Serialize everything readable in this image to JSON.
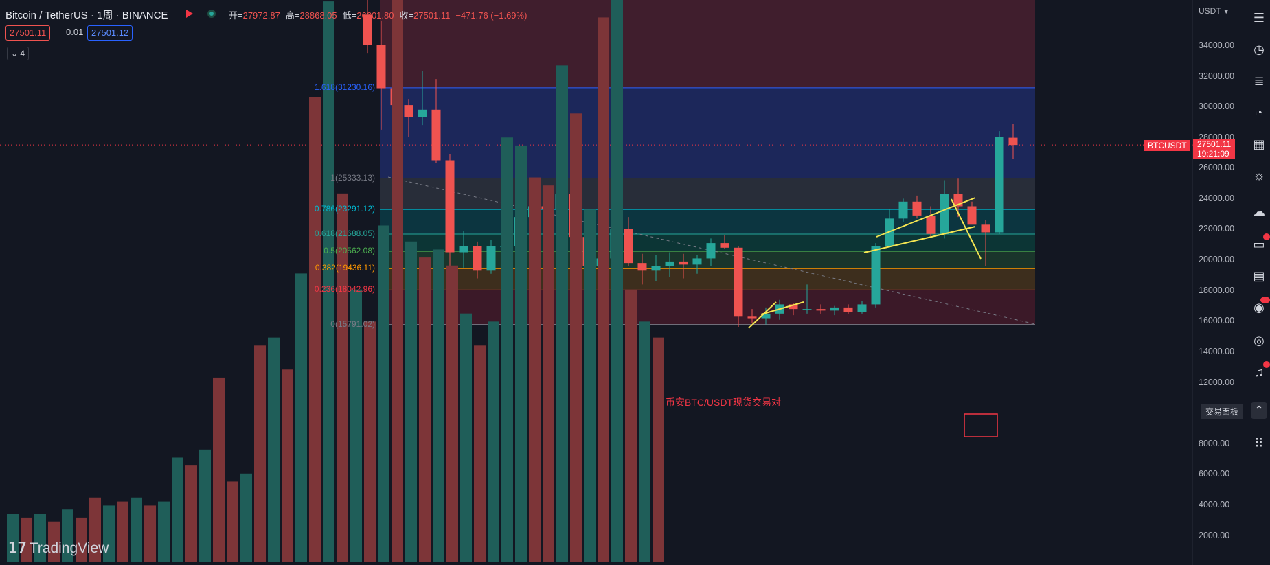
{
  "header": {
    "symbol": "Bitcoin / TetherUS · 1周 · BINANCE",
    "ohlc": [
      {
        "k": "开=",
        "v": "27972.87"
      },
      {
        "k": "高=",
        "v": "28868.05"
      },
      {
        "k": "低=",
        "v": "26601.80"
      },
      {
        "k": "收=",
        "v": "27501.11"
      },
      {
        "k": "",
        "v": "−471.76 (−1.69%)"
      }
    ],
    "bid": "27501.11",
    "spread": "0.01",
    "ask": "27501.12",
    "indicator_count": "4"
  },
  "axis": {
    "currency": "USDT",
    "labels": [
      "34000.00",
      "32000.00",
      "30000.00",
      "28000.00",
      "26000.00",
      "24000.00",
      "22000.00",
      "20000.00",
      "18000.00",
      "16000.00",
      "14000.00",
      "12000.00",
      "8000.00",
      "6000.00",
      "4000.00",
      "2000.00"
    ]
  },
  "price_tag": {
    "symbol": "BTCUSDT",
    "price": "27501.11",
    "countdown": "19:21:09"
  },
  "fib_levels": [
    {
      "label": "1.618(31230.16)",
      "price": 31230.16,
      "color": "#2962ff"
    },
    {
      "label": "1(25333.13)",
      "price": 25333.13,
      "color": "#787b86"
    },
    {
      "label": "0.786(23291.12)",
      "price": 23291.12,
      "color": "#00bcd4"
    },
    {
      "label": "0.618(21688.05)",
      "price": 21688.05,
      "color": "#26a69a"
    },
    {
      "label": "0.5(20562.08)",
      "price": 20562.08,
      "color": "#4caf50"
    },
    {
      "label": "0.382(19436.11)",
      "price": 19436.11,
      "color": "#ff9800"
    },
    {
      "label": "0.236(18042.96)",
      "price": 18042.96,
      "color": "#f23645"
    },
    {
      "label": "0(15791.02)",
      "price": 15791.02,
      "color": "#787b86"
    }
  ],
  "annotation": "币安BTC/USDT现货交易对",
  "tooltip": "交易面板",
  "watermark": "TradingView",
  "colors": {
    "up": "#26a69a",
    "down": "#ef5350",
    "bg": "#131722"
  },
  "chart_data": {
    "type": "candlestick",
    "title": "Bitcoin / TetherUS · 1周 · BINANCE",
    "ylim": [
      10500,
      35500
    ],
    "volume_ylim": [
      0,
      10000
    ],
    "candles": [
      {
        "o": 36000,
        "h": 38500,
        "l": 33500,
        "c": 34000
      },
      {
        "o": 34000,
        "h": 35600,
        "l": 28500,
        "c": 31200
      },
      {
        "o": 31200,
        "h": 31500,
        "l": 28200,
        "c": 30100
      },
      {
        "o": 30100,
        "h": 30500,
        "l": 28000,
        "c": 29300
      },
      {
        "o": 29300,
        "h": 32300,
        "l": 28800,
        "c": 29800
      },
      {
        "o": 29800,
        "h": 31800,
        "l": 26300,
        "c": 26500
      },
      {
        "o": 26500,
        "h": 26900,
        "l": 17600,
        "c": 20500
      },
      {
        "o": 20500,
        "h": 21900,
        "l": 19500,
        "c": 20900
      },
      {
        "o": 20900,
        "h": 21200,
        "l": 18800,
        "c": 19300
      },
      {
        "o": 19300,
        "h": 21300,
        "l": 19100,
        "c": 20900
      },
      {
        "o": 20900,
        "h": 22500,
        "l": 18900,
        "c": 20900
      },
      {
        "o": 20900,
        "h": 24300,
        "l": 20400,
        "c": 22800
      },
      {
        "o": 22800,
        "h": 24400,
        "l": 21300,
        "c": 23500
      },
      {
        "o": 23500,
        "h": 23800,
        "l": 22500,
        "c": 23300
      },
      {
        "o": 23300,
        "h": 24700,
        "l": 22600,
        "c": 24300
      },
      {
        "o": 24300,
        "h": 25200,
        "l": 21300,
        "c": 21500
      },
      {
        "o": 21500,
        "h": 22400,
        "l": 19500,
        "c": 19600
      },
      {
        "o": 19600,
        "h": 20500,
        "l": 19400,
        "c": 20100
      },
      {
        "o": 20100,
        "h": 22600,
        "l": 18700,
        "c": 22000
      },
      {
        "o": 22000,
        "h": 22800,
        "l": 19600,
        "c": 19800
      },
      {
        "o": 19800,
        "h": 20400,
        "l": 18400,
        "c": 19300
      },
      {
        "o": 19300,
        "h": 20300,
        "l": 18600,
        "c": 19600
      },
      {
        "o": 19600,
        "h": 20500,
        "l": 18900,
        "c": 19900
      },
      {
        "o": 19900,
        "h": 20400,
        "l": 18800,
        "c": 19700
      },
      {
        "o": 19700,
        "h": 20300,
        "l": 19100,
        "c": 20100
      },
      {
        "o": 20100,
        "h": 21400,
        "l": 19600,
        "c": 21100
      },
      {
        "o": 21100,
        "h": 21600,
        "l": 20700,
        "c": 20800
      },
      {
        "o": 20800,
        "h": 20900,
        "l": 15600,
        "c": 16300
      },
      {
        "o": 16300,
        "h": 16800,
        "l": 15900,
        "c": 16200
      },
      {
        "o": 16200,
        "h": 16900,
        "l": 15800,
        "c": 16500
      },
      {
        "o": 16500,
        "h": 17400,
        "l": 16100,
        "c": 17100
      },
      {
        "o": 17100,
        "h": 17200,
        "l": 16400,
        "c": 16800
      },
      {
        "o": 16800,
        "h": 18400,
        "l": 16500,
        "c": 16800
      },
      {
        "o": 16800,
        "h": 17100,
        "l": 16500,
        "c": 16700
      },
      {
        "o": 16700,
        "h": 17000,
        "l": 16400,
        "c": 16900
      },
      {
        "o": 16900,
        "h": 17100,
        "l": 16500,
        "c": 16600
      },
      {
        "o": 16600,
        "h": 17300,
        "l": 16500,
        "c": 17100
      },
      {
        "o": 17100,
        "h": 21100,
        "l": 16900,
        "c": 20900
      },
      {
        "o": 20900,
        "h": 23300,
        "l": 20800,
        "c": 22700
      },
      {
        "o": 22700,
        "h": 24000,
        "l": 22500,
        "c": 23800
      },
      {
        "o": 23800,
        "h": 24200,
        "l": 22700,
        "c": 22900
      },
      {
        "o": 22900,
        "h": 23500,
        "l": 21500,
        "c": 21700
      },
      {
        "o": 21700,
        "h": 25200,
        "l": 21400,
        "c": 24300
      },
      {
        "o": 24300,
        "h": 25300,
        "l": 22800,
        "c": 23500
      },
      {
        "o": 23500,
        "h": 23800,
        "l": 22400,
        "c": 22300
      },
      {
        "o": 22300,
        "h": 22600,
        "l": 19600,
        "c": 21800
      },
      {
        "o": 21800,
        "h": 28400,
        "l": 21700,
        "c": 28000
      },
      {
        "o": 27972.87,
        "h": 28868.05,
        "l": 26601.8,
        "c": 27501.11
      }
    ],
    "volume": [
      {
        "v": 600,
        "up": true
      },
      {
        "v": 550,
        "up": false
      },
      {
        "v": 600,
        "up": true
      },
      {
        "v": 500,
        "up": false
      },
      {
        "v": 650,
        "up": true
      },
      {
        "v": 550,
        "up": false
      },
      {
        "v": 800,
        "up": false
      },
      {
        "v": 700,
        "up": true
      },
      {
        "v": 750,
        "up": false
      },
      {
        "v": 800,
        "up": true
      },
      {
        "v": 700,
        "up": false
      },
      {
        "v": 750,
        "up": true
      },
      {
        "v": 1300,
        "up": true
      },
      {
        "v": 1200,
        "up": false
      },
      {
        "v": 1400,
        "up": true
      },
      {
        "v": 2300,
        "up": false
      },
      {
        "v": 1000,
        "up": false
      },
      {
        "v": 1100,
        "up": true
      },
      {
        "v": 2700,
        "up": false
      },
      {
        "v": 2800,
        "up": true
      },
      {
        "v": 2400,
        "up": false
      },
      {
        "v": 3600,
        "up": true
      },
      {
        "v": 5800,
        "up": false
      },
      {
        "v": 7000,
        "up": true
      },
      {
        "v": 4600,
        "up": false
      },
      {
        "v": 3400,
        "up": true
      },
      {
        "v": 3000,
        "up": false
      },
      {
        "v": 4200,
        "up": true
      },
      {
        "v": 8100,
        "up": false
      },
      {
        "v": 4000,
        "up": true
      },
      {
        "v": 3800,
        "up": false
      },
      {
        "v": 3900,
        "up": true
      },
      {
        "v": 3700,
        "up": false
      },
      {
        "v": 3100,
        "up": true
      },
      {
        "v": 2700,
        "up": false
      },
      {
        "v": 3000,
        "up": true
      },
      {
        "v": 5300,
        "up": true
      },
      {
        "v": 5200,
        "up": true
      },
      {
        "v": 4800,
        "up": false
      },
      {
        "v": 4700,
        "up": false
      },
      {
        "v": 6200,
        "up": true
      },
      {
        "v": 5600,
        "up": false
      },
      {
        "v": 4400,
        "up": true
      },
      {
        "v": 6800,
        "up": false
      },
      {
        "v": 9400,
        "up": true
      },
      {
        "v": 3400,
        "up": false
      },
      {
        "v": 3000,
        "up": true
      },
      {
        "v": 2800,
        "up": false
      }
    ]
  }
}
